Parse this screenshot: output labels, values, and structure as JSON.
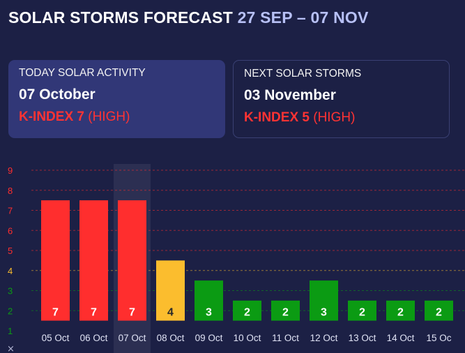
{
  "header": {
    "title": "SOLAR STORMS FORECAST",
    "range": "27 SEP – 07 NOV"
  },
  "today": {
    "heading": "TODAY SOLAR ACTIVITY",
    "date": "07 October",
    "kindex_label": "K-INDEX 7",
    "level": "(HIGH)"
  },
  "next": {
    "heading": "NEXT SOLAR STORMS",
    "date": "03 November",
    "kindex_label": "K-INDEX 5",
    "level": "(HIGH)"
  },
  "colors": {
    "background": "#1c2045",
    "high": "#ff2e2e",
    "medium": "#fbbd2e",
    "low": "#0b9b13",
    "range_text": "#b7c0f5"
  },
  "chart_data": {
    "type": "bar",
    "categories": [
      "05 Oct",
      "06 Oct",
      "07 Oct",
      "08 Oct",
      "09 Oct",
      "10 Oct",
      "11 Oct",
      "12 Oct",
      "13 Oct",
      "14 Oct",
      "15 Oc"
    ],
    "values": [
      7,
      7,
      7,
      4,
      3,
      2,
      2,
      3,
      2,
      2,
      2
    ],
    "ylim": [
      1,
      9
    ],
    "yticks": [
      1,
      2,
      3,
      4,
      5,
      6,
      7,
      8,
      9
    ],
    "highlight_category": "07 Oct",
    "grid": true,
    "corner_mark": "×"
  }
}
